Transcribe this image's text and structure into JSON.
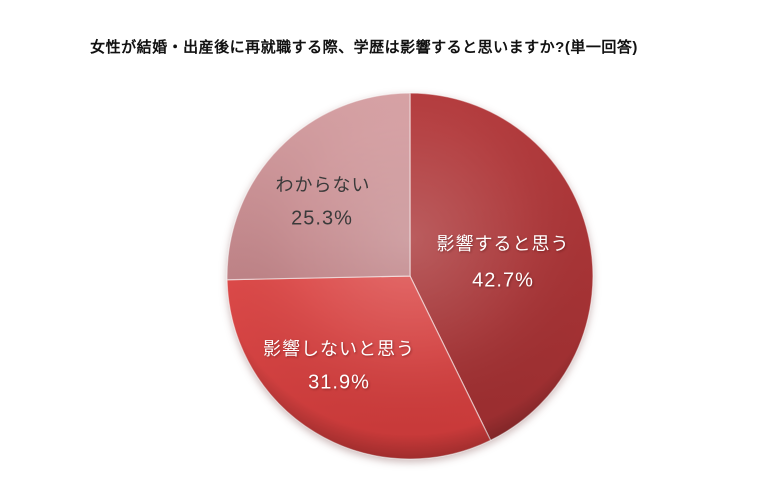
{
  "title": "女性が結婚・出産後に再就職する際、学歴は影響すると思いますか?(単一回答)",
  "chart_data": {
    "type": "pie",
    "title": "女性が結婚・出産後に再就職する際、学歴は影響すると思いますか?(単一回答)",
    "unit": "%",
    "direction": "clockwise",
    "start_angle_deg": 0,
    "legend": "none",
    "labels_position": "inside",
    "categories": [
      "影響すると思う",
      "影響しないと思う",
      "わからない"
    ],
    "values": [
      42.7,
      31.9,
      25.3
    ],
    "slices": [
      {
        "label": "影響すると思う",
        "value": 42.7,
        "pct_label": "42.7%",
        "color": "#A33133",
        "color_top": "#B53A3C",
        "color_bottom": "#992D2F",
        "text_color": "#FFFFFF"
      },
      {
        "label": "影響しないと思う",
        "value": 31.9,
        "pct_label": "31.9%",
        "color": "#D14040",
        "color_top": "#DC4A49",
        "color_bottom": "#C53737",
        "text_color": "#FFFFFF"
      },
      {
        "label": "わからない",
        "value": 25.3,
        "pct_label": "25.3%",
        "color": "#C98F91",
        "color_top": "#D8A2A5",
        "color_bottom": "#BE8286",
        "text_color": "#3A3A3A"
      }
    ]
  }
}
